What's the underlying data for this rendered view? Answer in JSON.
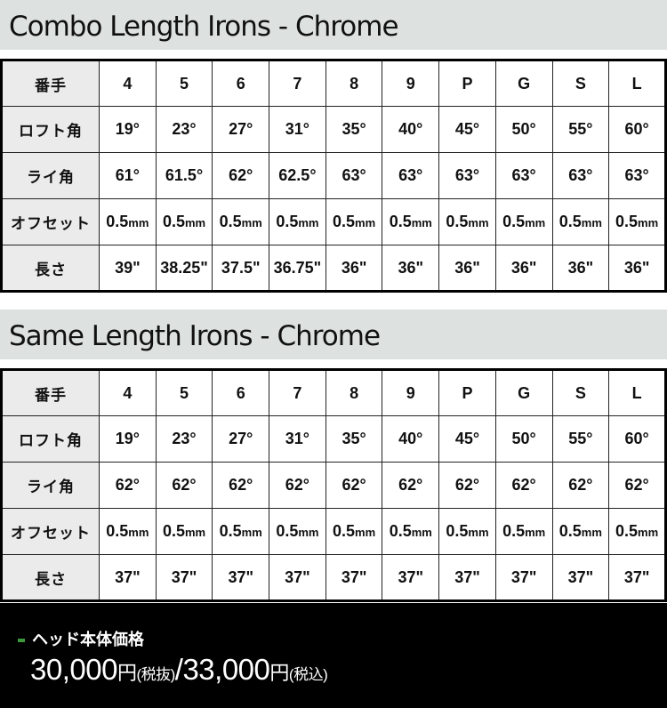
{
  "sections": [
    {
      "title": "Combo Length Irons - Chrome",
      "rows": [
        {
          "label": "番手",
          "cells": [
            "4",
            "5",
            "6",
            "7",
            "8",
            "9",
            "P",
            "G",
            "S",
            "L"
          ]
        },
        {
          "label": "ロフト角",
          "cells": [
            "19°",
            "23°",
            "27°",
            "31°",
            "35°",
            "40°",
            "45°",
            "50°",
            "55°",
            "60°"
          ]
        },
        {
          "label": "ライ角",
          "cells": [
            "61°",
            "61.5°",
            "62°",
            "62.5°",
            "63°",
            "63°",
            "63°",
            "63°",
            "63°",
            "63°"
          ]
        },
        {
          "label": "オフセット",
          "cells": [
            "0.5mm",
            "0.5mm",
            "0.5mm",
            "0.5mm",
            "0.5mm",
            "0.5mm",
            "0.5mm",
            "0.5mm",
            "0.5mm",
            "0.5mm"
          ]
        },
        {
          "label": "長さ",
          "cells": [
            "39\"",
            "38.25\"",
            "37.5\"",
            "36.75\"",
            "36\"",
            "36\"",
            "36\"",
            "36\"",
            "36\"",
            "36\""
          ]
        }
      ]
    },
    {
      "title": "Same Length Irons - Chrome",
      "rows": [
        {
          "label": "番手",
          "cells": [
            "4",
            "5",
            "6",
            "7",
            "8",
            "9",
            "P",
            "G",
            "S",
            "L"
          ]
        },
        {
          "label": "ロフト角",
          "cells": [
            "19°",
            "23°",
            "27°",
            "31°",
            "35°",
            "40°",
            "45°",
            "50°",
            "55°",
            "60°"
          ]
        },
        {
          "label": "ライ角",
          "cells": [
            "62°",
            "62°",
            "62°",
            "62°",
            "62°",
            "62°",
            "62°",
            "62°",
            "62°",
            "62°"
          ]
        },
        {
          "label": "オフセット",
          "cells": [
            "0.5mm",
            "0.5mm",
            "0.5mm",
            "0.5mm",
            "0.5mm",
            "0.5mm",
            "0.5mm",
            "0.5mm",
            "0.5mm",
            "0.5mm"
          ]
        },
        {
          "label": "長さ",
          "cells": [
            "37\"",
            "37\"",
            "37\"",
            "37\"",
            "37\"",
            "37\"",
            "37\"",
            "37\"",
            "37\"",
            "37\""
          ]
        }
      ]
    }
  ],
  "footer": {
    "label": "ヘッド本体価格",
    "price_ex": "30,000",
    "yen": "円",
    "tax_ex": "(税抜)",
    "slash": "/",
    "price_in": "33,000",
    "tax_in": "(税込)",
    "accent": "#3c9a3c"
  }
}
